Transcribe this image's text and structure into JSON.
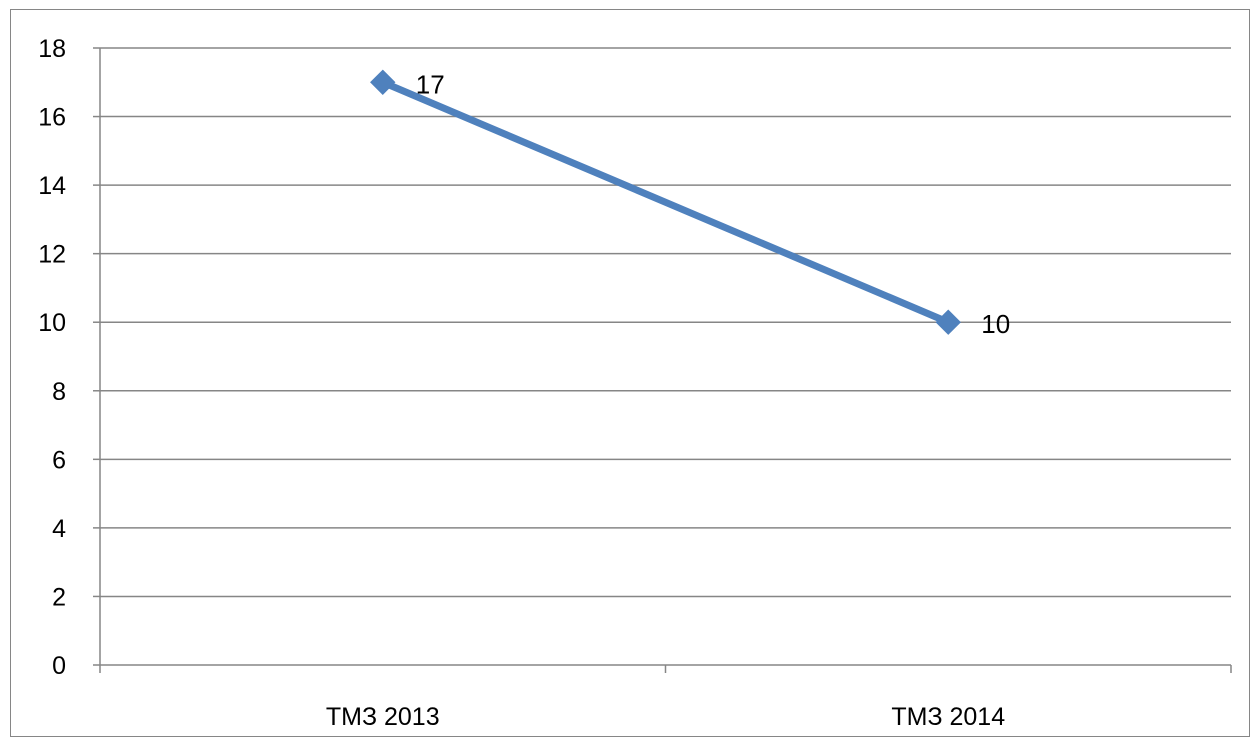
{
  "chart_data": {
    "type": "line",
    "categories": [
      "ТМЗ 2013",
      "ТМЗ 2014"
    ],
    "series": [
      {
        "values": [
          17,
          10
        ],
        "color": "#4F81BD",
        "marker": "diamond",
        "data_labels": [
          "17",
          "10"
        ]
      }
    ],
    "title": "",
    "xlabel": "",
    "ylabel": "",
    "ylim": [
      0,
      18
    ],
    "y_ticks": [
      "0",
      "2",
      "4",
      "6",
      "8",
      "10",
      "12",
      "14",
      "16",
      "18"
    ],
    "grid": "horizontal",
    "legend": "none",
    "gridline_color": "#868686"
  }
}
